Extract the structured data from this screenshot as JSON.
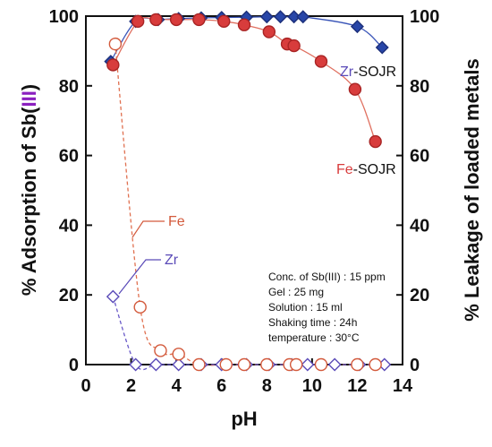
{
  "chart_data": {
    "type": "scatter",
    "xlabel": "pH",
    "ylabel_left": {
      "prefix": "% Adsorption of Sb(",
      "highlight": "III",
      "suffix": ")"
    },
    "ylabel_right": "% Leakage of loaded metals",
    "xlim": [
      0,
      14
    ],
    "ylim": [
      0,
      100
    ],
    "x_ticks": [
      "0",
      "2",
      "4",
      "6",
      "8",
      "10",
      "12",
      "14"
    ],
    "y_ticks_left": [
      "0",
      "20",
      "40",
      "60",
      "80",
      "100"
    ],
    "y_ticks_right": [
      "0",
      "20",
      "40",
      "60",
      "80",
      "100"
    ],
    "series": [
      {
        "name": "Zr-SOJR",
        "label_prefix": "Zr",
        "label_suffix": "-SOJR",
        "marker": "diamond-filled",
        "color": "#2846a8",
        "x": [
          1.1,
          2.2,
          3.2,
          4.1,
          5.1,
          6.0,
          7.1,
          8.0,
          8.6,
          9.2,
          9.6,
          12.0,
          13.1
        ],
        "y": [
          87,
          98.5,
          99,
          99.3,
          99.5,
          99.6,
          99.7,
          99.8,
          99.8,
          99.8,
          99.8,
          97,
          91
        ]
      },
      {
        "name": "Fe-SOJR",
        "label_prefix": "Fe",
        "label_suffix": "-SOJR",
        "marker": "circle-filled",
        "color": "#d83c3c",
        "x": [
          1.2,
          2.3,
          3.1,
          4.0,
          5.0,
          6.1,
          7.0,
          8.1,
          8.9,
          9.2,
          10.4,
          11.9,
          12.8
        ],
        "y": [
          86,
          98.5,
          99,
          99,
          99,
          98.5,
          97.5,
          95.5,
          92,
          91.5,
          87,
          79,
          64
        ]
      },
      {
        "name": "Fe",
        "label": "Fe",
        "marker": "circle-open",
        "color": "#d35a3c",
        "x": [
          1.3,
          2.4,
          3.3,
          4.1,
          5.0,
          6.2,
          7.0,
          8.0,
          9.0,
          9.3,
          10.4,
          12.0,
          12.8
        ],
        "y": [
          92,
          16.5,
          4,
          3,
          0,
          0,
          0,
          0,
          0,
          0,
          0,
          0,
          0
        ]
      },
      {
        "name": "Zr",
        "label": "Zr",
        "marker": "diamond-open",
        "color": "#5a4ab8",
        "x": [
          1.2,
          2.2,
          3.1,
          4.1,
          5.1,
          6.0,
          7.1,
          8.1,
          9.1,
          9.8,
          11.0,
          12.1,
          13.2
        ],
        "y": [
          19.5,
          0,
          0,
          0,
          0,
          0,
          0,
          0,
          0,
          0,
          0,
          0,
          0
        ]
      }
    ],
    "annotations": [
      "Conc. of Sb(III) : 15 ppm",
      "Gel : 25 mg",
      "Solution : 15 ml",
      "Shaking time : 24h",
      "temperature : 30°C"
    ],
    "grid": false
  },
  "colors": {
    "axis": "#111111",
    "highlight": "#8a1fbf",
    "zr_label": "#5a4ab8",
    "fe_label": "#d83c3c"
  }
}
